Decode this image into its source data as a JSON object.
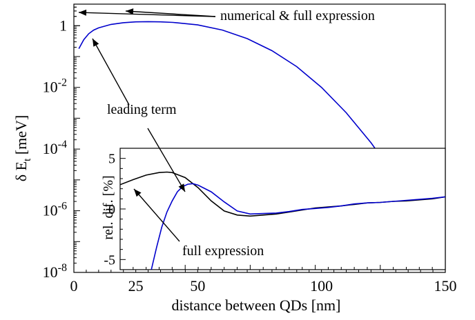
{
  "chart_data": [
    {
      "type": "line",
      "xlabel": "distance between QDs [nm]",
      "ylabel_main": "δ E",
      "ylabel_sub": "t",
      "ylabel_unit": " [meV]",
      "xlim": [
        0,
        150
      ],
      "ylim": [
        1e-08,
        5
      ],
      "yscale": "log",
      "x_ticks": [
        0,
        25,
        50,
        100,
        150
      ],
      "y_ticks": [
        {
          "value": 1,
          "label": "1"
        },
        {
          "value": 0.01,
          "base": "10",
          "exp": "-2"
        },
        {
          "value": 0.0001,
          "base": "10",
          "exp": "-4"
        },
        {
          "value": 1e-06,
          "base": "10",
          "exp": "-6"
        },
        {
          "value": 1e-08,
          "base": "10",
          "exp": "-8"
        }
      ],
      "series": [
        {
          "color": "#0000cc",
          "x": [
            2,
            4,
            6,
            8,
            10,
            15,
            20,
            25,
            30,
            35,
            40,
            50,
            60,
            70,
            80,
            90,
            100,
            110,
            120,
            130,
            136
          ],
          "y": [
            0.18,
            0.35,
            0.55,
            0.72,
            0.85,
            1.1,
            1.25,
            1.33,
            1.35,
            1.33,
            1.28,
            1.06,
            0.72,
            0.38,
            0.155,
            0.047,
            0.01,
            0.0015,
            0.00016,
            1.2e-05,
            2.4e-06
          ]
        },
        {
          "color": "#000000",
          "style": "dashed",
          "x": [
            136,
            140,
            145,
            150
          ],
          "y": [
            2.4e-06,
            1.2e-06,
            4.5e-07,
            1.6e-07
          ]
        }
      ],
      "annotations": [
        {
          "text": "numerical & full expression",
          "x": 20,
          "y": 2.5
        },
        {
          "text": "leading term",
          "x": 7,
          "y": 0.5
        }
      ]
    },
    {
      "type": "line",
      "ylabel": "rel. dif. [%]",
      "xlim": [
        25,
        150
      ],
      "ylim": [
        -6,
        6
      ],
      "y_ticks": [
        5,
        0,
        -5
      ],
      "series": [
        {
          "color": "#000000",
          "x": [
            25,
            30,
            35,
            40,
            43,
            45,
            50,
            55,
            60,
            65,
            70,
            75,
            80,
            85,
            90,
            95,
            100,
            105,
            110,
            115,
            120,
            125,
            130,
            135,
            140,
            145,
            150
          ],
          "y": [
            2.4,
            2.9,
            3.35,
            3.6,
            3.65,
            3.6,
            3.1,
            2.1,
            0.8,
            -0.2,
            -0.6,
            -0.7,
            -0.6,
            -0.5,
            -0.3,
            -0.1,
            0.1,
            0.2,
            0.3,
            0.45,
            0.6,
            0.65,
            0.75,
            0.8,
            0.9,
            1.0,
            1.2
          ]
        },
        {
          "color": "#0000cc",
          "x": [
            37,
            39,
            41,
            43,
            45,
            47,
            49,
            51,
            53,
            55,
            60,
            65,
            70,
            75,
            80,
            85,
            90,
            95,
            100,
            105,
            110,
            115,
            120,
            125,
            130,
            135,
            140,
            145,
            150
          ],
          "y": [
            -6,
            -3.8,
            -1.8,
            -0.3,
            0.8,
            1.7,
            2.2,
            2.45,
            2.5,
            2.35,
            1.7,
            0.7,
            -0.2,
            -0.5,
            -0.45,
            -0.4,
            -0.25,
            -0.05,
            0.05,
            0.15,
            0.3,
            0.5,
            0.6,
            0.65,
            0.75,
            0.85,
            0.95,
            1.05,
            1.2
          ]
        }
      ],
      "annotations": [
        {
          "text": "full expression",
          "x": 86,
          "y": -4.0
        }
      ]
    }
  ]
}
